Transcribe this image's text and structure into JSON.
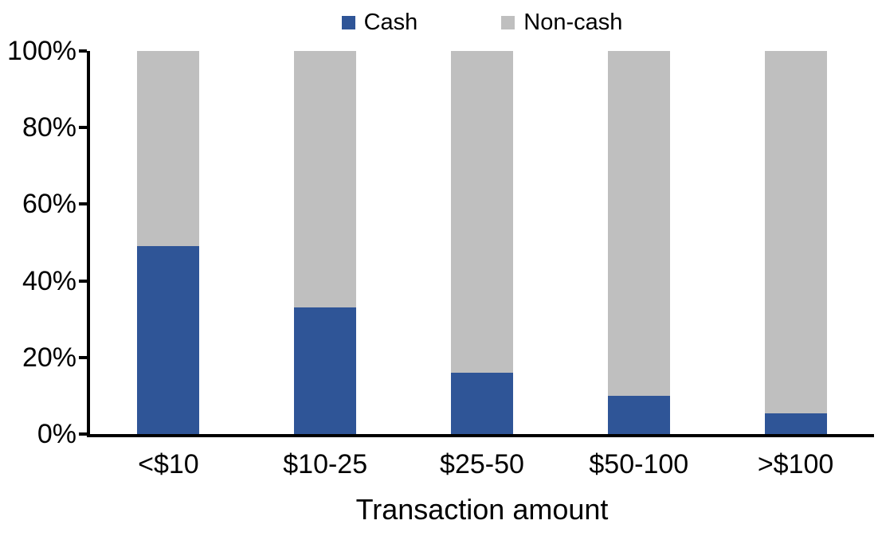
{
  "chart_data": {
    "type": "bar",
    "stacked": true,
    "percent_stacked": true,
    "title": "",
    "xlabel": "Transaction amount",
    "ylabel": "",
    "categories": [
      "<$10",
      "$10-25",
      "$25-50",
      "$50-100",
      ">$100"
    ],
    "series": [
      {
        "name": "Cash",
        "color": "#2F5597",
        "values": [
          49,
          33,
          16,
          10,
          5.5
        ]
      },
      {
        "name": "Non-cash",
        "color": "#BFBFBF",
        "values": [
          51,
          67,
          84,
          90,
          94.5
        ]
      }
    ],
    "ylim": [
      0,
      100
    ],
    "y_ticks": [
      {
        "value": 0,
        "label": "0%"
      },
      {
        "value": 20,
        "label": "20%"
      },
      {
        "value": 40,
        "label": "40%"
      },
      {
        "value": 60,
        "label": "60%"
      },
      {
        "value": 80,
        "label": "80%"
      },
      {
        "value": 100,
        "label": "100%"
      }
    ],
    "grid": false,
    "legend_position": "top",
    "axis_color": "#000000",
    "background_color": "#FFFFFF"
  }
}
